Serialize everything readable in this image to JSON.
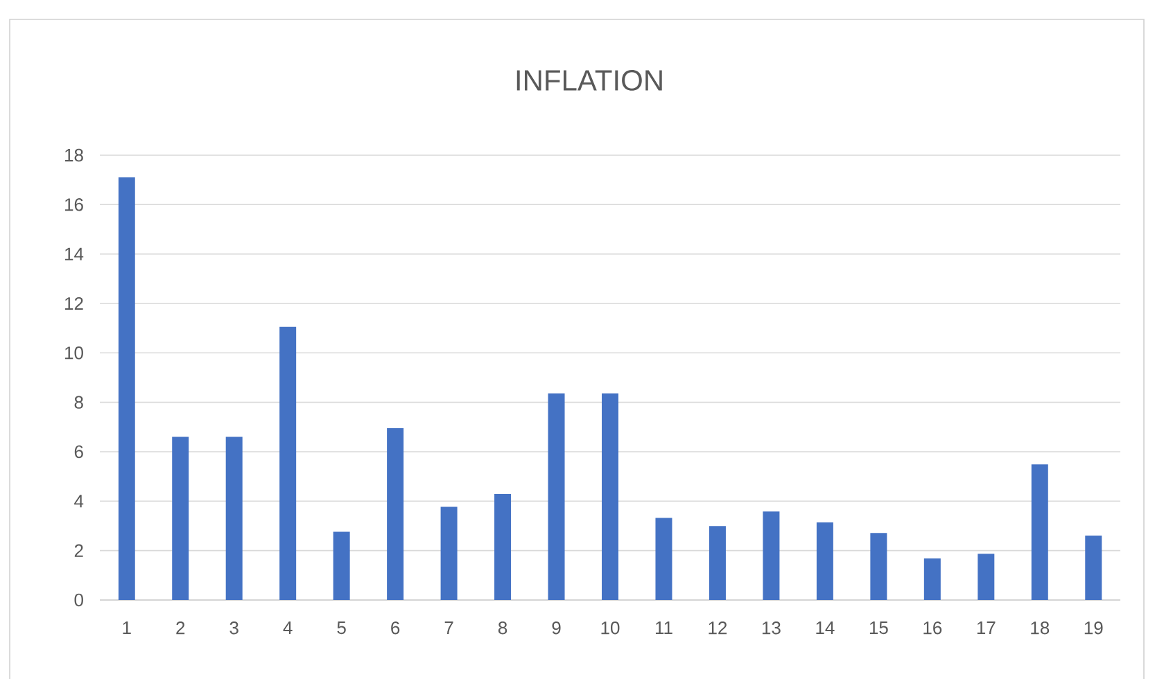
{
  "chart_data": {
    "type": "bar",
    "title": "INFLATION",
    "categories": [
      "1",
      "2",
      "3",
      "4",
      "5",
      "6",
      "7",
      "8",
      "9",
      "10",
      "11",
      "12",
      "13",
      "14",
      "15",
      "16",
      "17",
      "18",
      "19"
    ],
    "values": [
      17.1,
      6.6,
      6.6,
      11.05,
      2.76,
      6.95,
      3.77,
      4.29,
      8.36,
      8.36,
      3.32,
      2.99,
      3.58,
      3.14,
      2.71,
      1.68,
      1.87,
      5.49,
      2.61
    ],
    "color": "#4472c4",
    "ylim": [
      0,
      18
    ],
    "yticks": [
      0,
      2,
      4,
      6,
      8,
      10,
      12,
      14,
      16,
      18
    ],
    "grid": "y"
  }
}
